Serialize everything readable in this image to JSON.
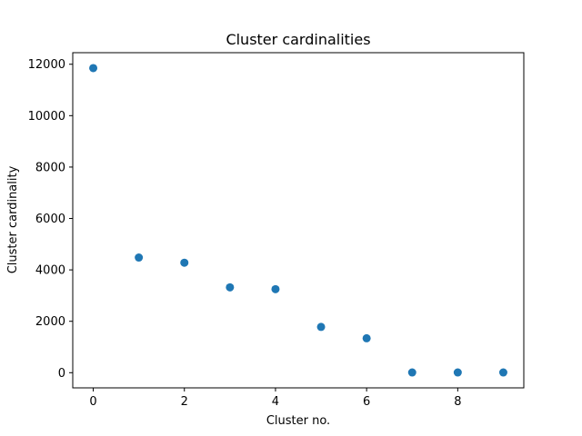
{
  "chart_data": {
    "type": "scatter",
    "title": "Cluster cardinalities",
    "xlabel": "Cluster no.",
    "ylabel": "Cluster cardinality",
    "x": [
      0,
      1,
      2,
      3,
      4,
      5,
      6,
      7,
      8,
      9
    ],
    "y": [
      11850,
      4480,
      4280,
      3320,
      3250,
      1780,
      1340,
      10,
      10,
      10
    ],
    "xlim": [
      -0.45,
      9.45
    ],
    "ylim": [
      -590,
      12450
    ],
    "xticks": [
      0,
      2,
      4,
      6,
      8
    ],
    "yticks": [
      0,
      2000,
      4000,
      6000,
      8000,
      10000,
      12000
    ],
    "grid": false,
    "legend": "none",
    "marker_color": "#1f77b4"
  }
}
